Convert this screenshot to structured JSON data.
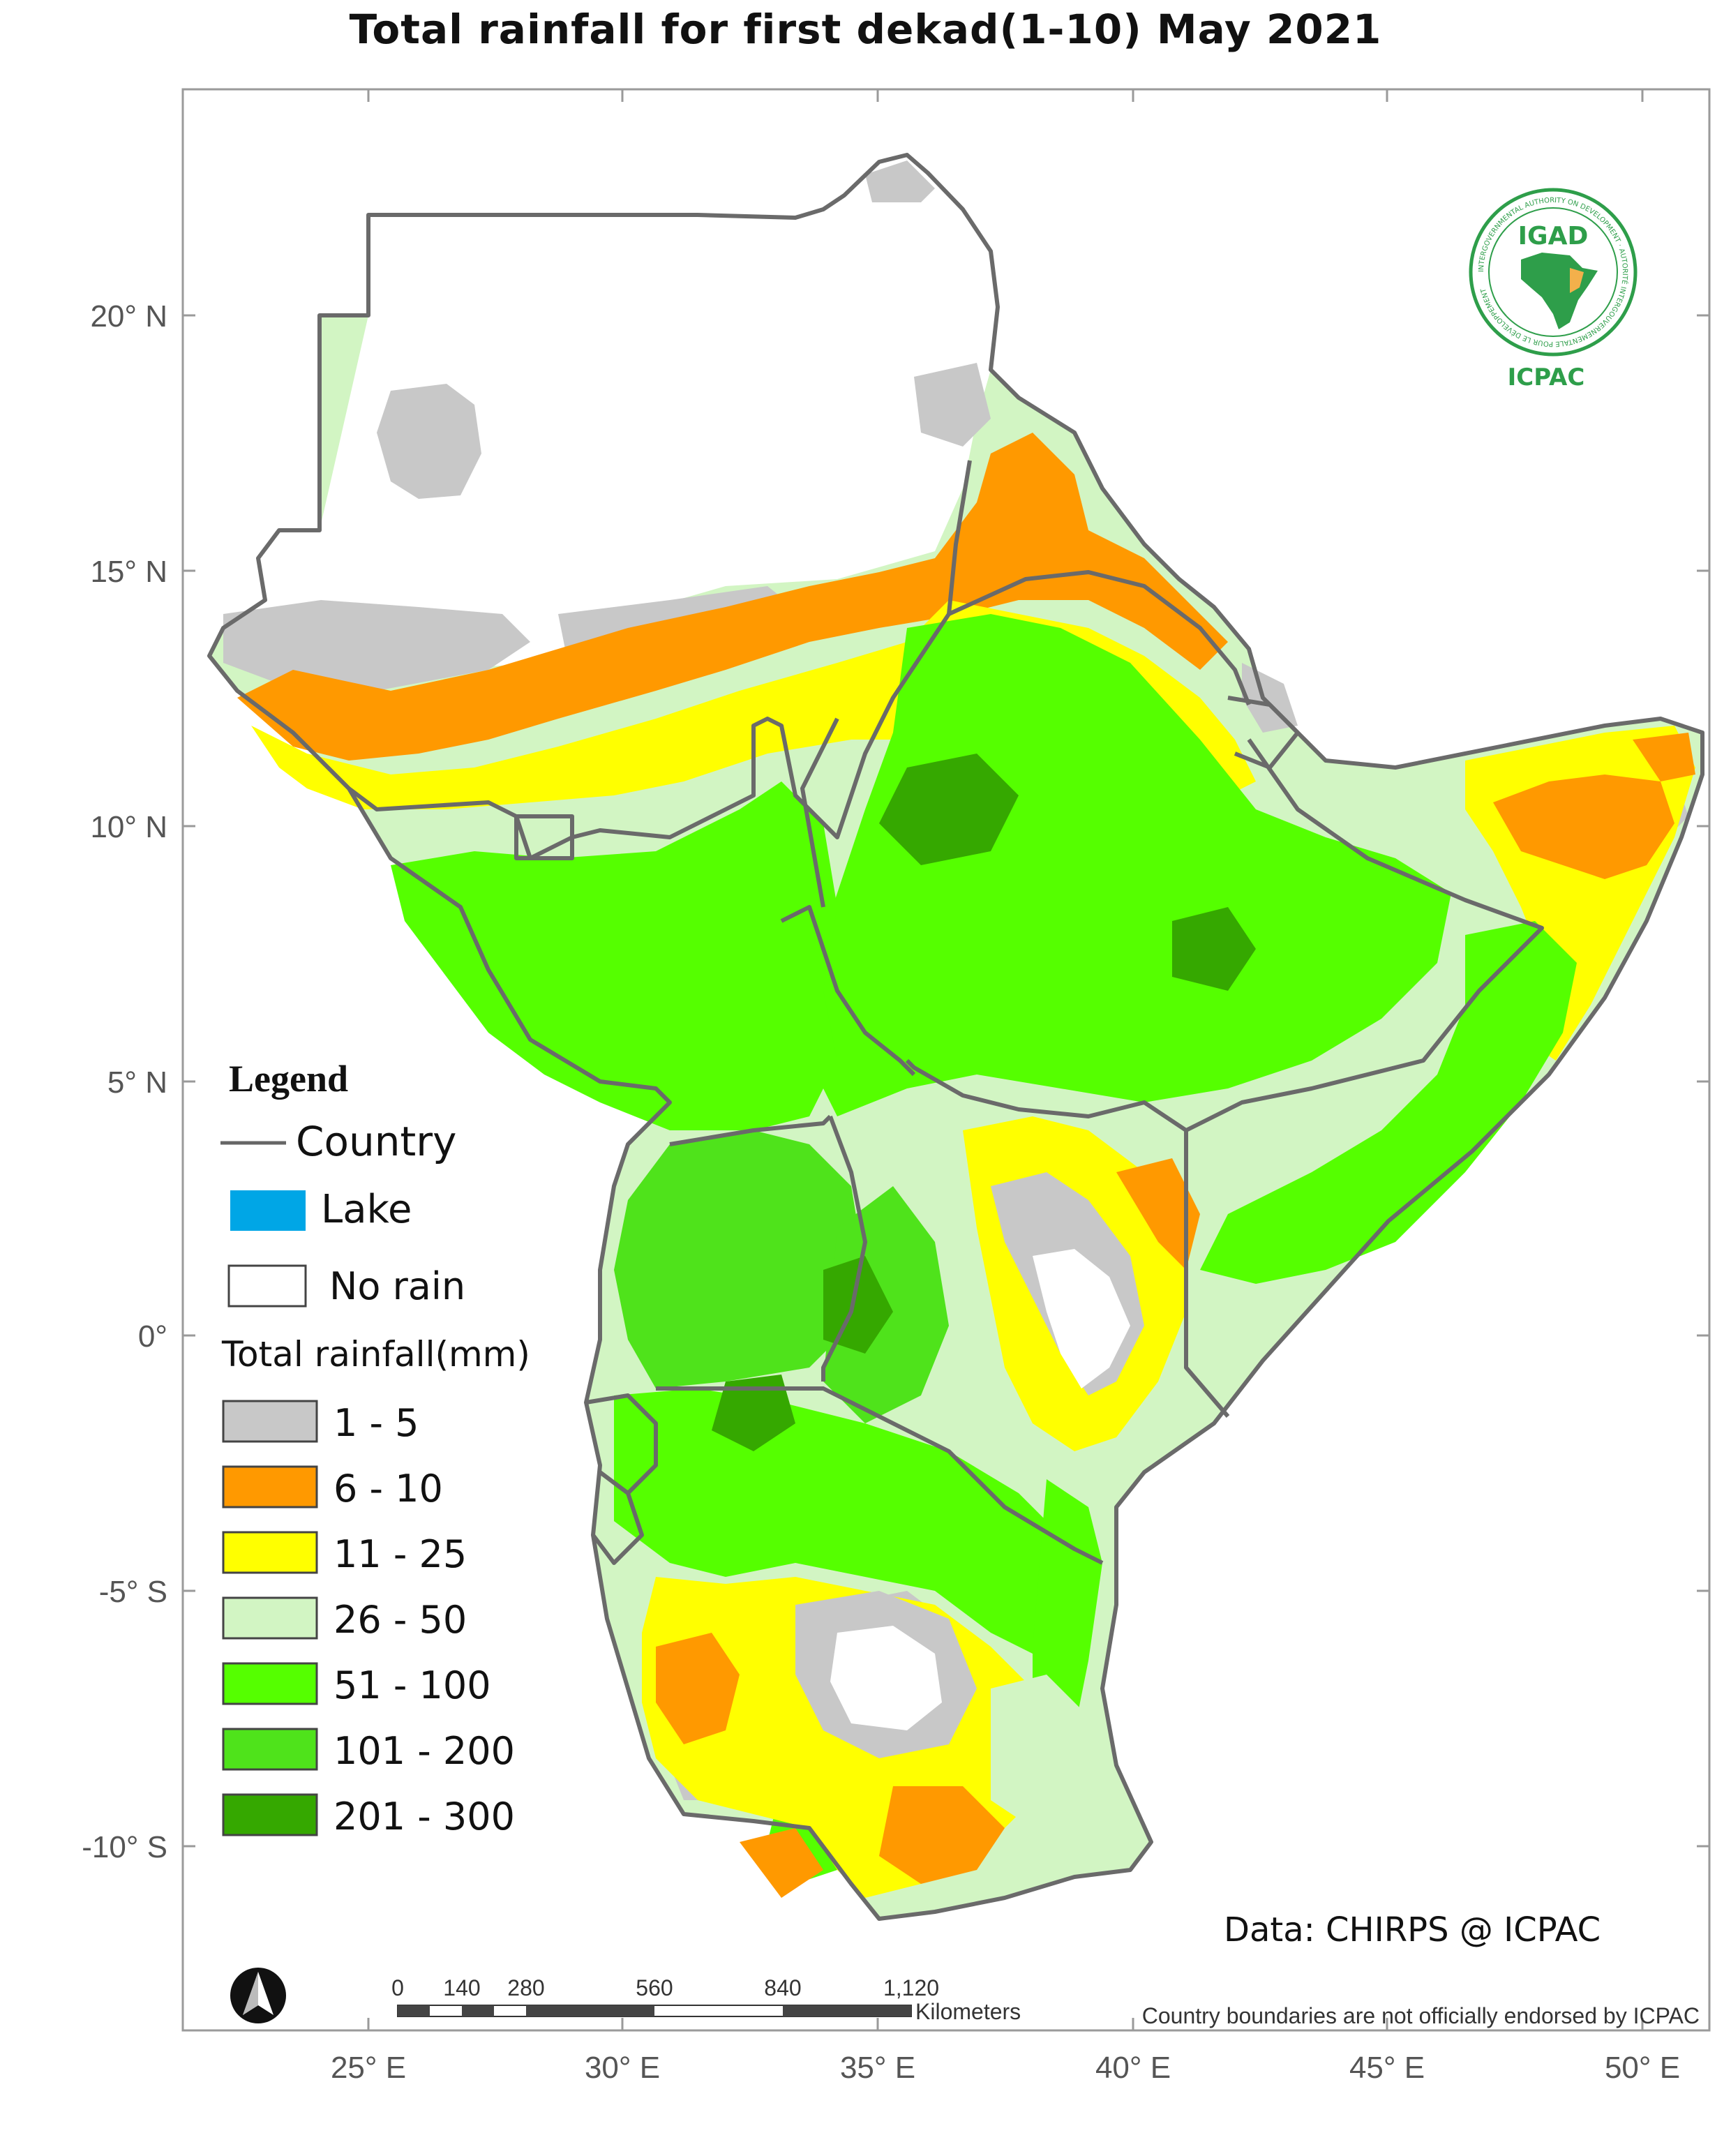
{
  "title": "Total rainfall for  first  dekad(1-10)  May 2021",
  "axes": {
    "longitude_ticks": [
      "25° E",
      "30° E",
      "35° E",
      "40° E",
      "45° E",
      "50° E"
    ],
    "latitude_ticks": [
      "20° N",
      "15° N",
      "10° N",
      "5° N",
      "0°",
      "-5° S",
      "-10° S"
    ]
  },
  "logo": {
    "name": "IGAD",
    "ring_text": "INTERGOVERNMENTAL AUTHORITY ON DEVELOPMENT · AUTORITÉ INTERGOUVERNEMENTALE POUR LE DÉVELOPPEMENT",
    "sub": "ICPAC"
  },
  "legend": {
    "heading": "Legend",
    "country_label": "Country",
    "lake_label": "Lake",
    "norain_label": "No rain",
    "rain_title": "Total rainfall(mm)",
    "classes": [
      {
        "label": "1 - 5",
        "color": "#c8c8c8"
      },
      {
        "label": "6 - 10",
        "color": "#ff9900"
      },
      {
        "label": "11 - 25",
        "color": "#ffff00"
      },
      {
        "label": "26 - 50",
        "color": "#d2f5c3"
      },
      {
        "label": "51 - 100",
        "color": "#55ff00"
      },
      {
        "label": "101 - 200",
        "color": "#4fe31b"
      },
      {
        "label": "201 - 300",
        "color": "#35a800"
      }
    ],
    "country_color": "#666666",
    "lake_color": "#00a6e6"
  },
  "credit": "Data: CHIRPS @ ICPAC",
  "scalebar": {
    "ticks": [
      "0",
      "140",
      "280",
      "560",
      "840",
      "1,120"
    ],
    "units": "Kilometers"
  },
  "disclaimer": "Country boundaries are not officially endorsed by ICPAC"
}
